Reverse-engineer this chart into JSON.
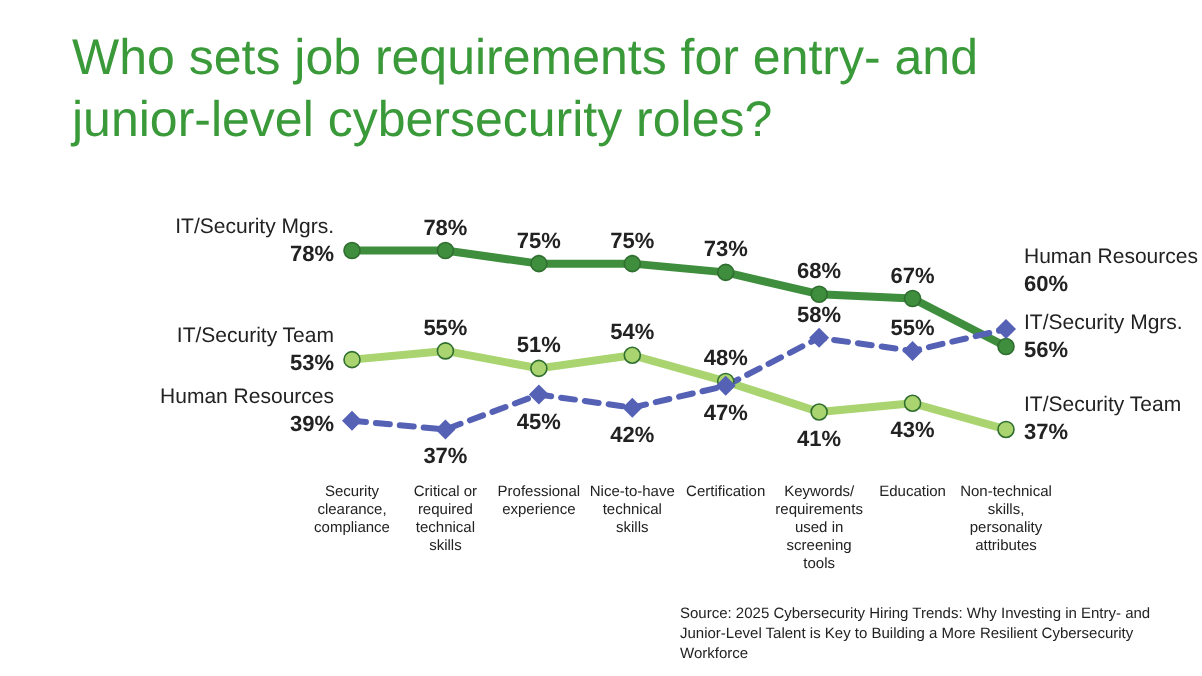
{
  "chart_data": {
    "type": "line",
    "title": "Who sets job requirements for entry- and junior-level cybersecurity roles?",
    "categories": [
      "Security clearance, compliance",
      "Critical or required technical skills",
      "Professional experience",
      "Nice-to-have technical skills",
      "Certification",
      "Keywords/ requirements used in screening tools",
      "Education",
      "Non-technical skills, personality attributes"
    ],
    "series": [
      {
        "name": "IT/Security Mgrs.",
        "color": "#3e8e3e",
        "marker": "circle",
        "line_style": "solid",
        "values": [
          78,
          78,
          75,
          75,
          73,
          68,
          67,
          56
        ],
        "value_labels": [
          "78%",
          "78%",
          "75%",
          "75%",
          "73%",
          "68%",
          "67%",
          "56%"
        ]
      },
      {
        "name": "IT/Security Team",
        "color": "#a9d46f",
        "marker": "circle",
        "line_style": "solid",
        "values": [
          53,
          55,
          51,
          54,
          48,
          41,
          43,
          37
        ],
        "value_labels": [
          "53%",
          "55%",
          "51%",
          "54%",
          "48%",
          "41%",
          "43%",
          "37%"
        ]
      },
      {
        "name": "Human Resources",
        "color": "#5561b5",
        "marker": "diamond",
        "line_style": "dashed",
        "values": [
          39,
          37,
          45,
          42,
          47,
          58,
          55,
          60
        ],
        "value_labels": [
          "39%",
          "37%",
          "45%",
          "42%",
          "47%",
          "58%",
          "55%",
          "60%"
        ]
      }
    ],
    "annotations": [
      "Source: 2025 Cybersecurity Hiring Trends: Why Investing in Entry- and Junior-Level Talent is Key to Building a More Resilient Cybersecurity Workforce"
    ]
  }
}
